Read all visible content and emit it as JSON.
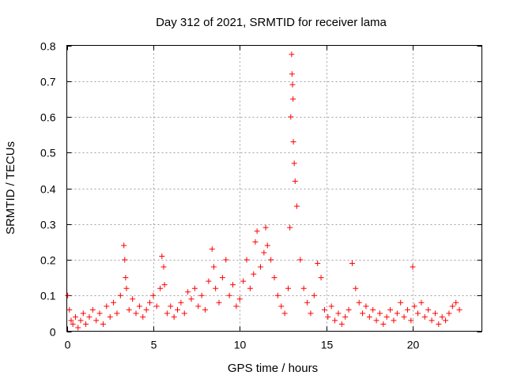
{
  "chart_data": {
    "type": "scatter",
    "title": "Day 312 of 2021, SRMTID for receiver lama",
    "xlabel": "GPS time / hours",
    "ylabel": "SRMTID / TECUs",
    "xlim": [
      0,
      24
    ],
    "ylim": [
      0,
      0.8
    ],
    "xticks": [
      0,
      5,
      10,
      15,
      20
    ],
    "xtick_labels": [
      "0",
      "5",
      "10",
      "15",
      "20"
    ],
    "yticks": [
      0,
      0.1,
      0.2,
      0.3,
      0.4,
      0.5,
      0.6,
      0.7,
      0.8
    ],
    "ytick_labels": [
      "0",
      "0.1",
      "0.2",
      "0.3",
      "0.4",
      "0.5",
      "0.6",
      "0.7",
      "0.8"
    ],
    "grid": true,
    "marker": "plus",
    "color": "#ff0000",
    "series": [
      {
        "name": "SRMTID",
        "x": [
          0.05,
          0.15,
          0.25,
          0.35,
          0.5,
          0.65,
          0.8,
          0.95,
          1.1,
          1.3,
          1.5,
          1.7,
          1.9,
          2.1,
          2.3,
          2.5,
          2.7,
          2.9,
          3.1,
          3.3,
          3.35,
          3.4,
          3.45,
          3.6,
          3.8,
          4.0,
          4.2,
          4.4,
          4.6,
          4.8,
          5.0,
          5.2,
          5.4,
          5.5,
          5.6,
          5.65,
          5.8,
          6.0,
          6.2,
          6.4,
          6.6,
          6.8,
          7.0,
          7.2,
          7.4,
          7.6,
          7.8,
          8.0,
          8.2,
          8.4,
          8.5,
          8.6,
          8.8,
          9.0,
          9.2,
          9.4,
          9.6,
          9.8,
          10.0,
          10.2,
          10.4,
          10.6,
          10.8,
          10.9,
          11.0,
          11.2,
          11.4,
          11.5,
          11.6,
          11.8,
          12.0,
          12.2,
          12.4,
          12.6,
          12.8,
          12.9,
          12.95,
          13.0,
          13.02,
          13.05,
          13.08,
          13.1,
          13.15,
          13.2,
          13.3,
          13.5,
          13.7,
          13.9,
          14.1,
          14.3,
          14.5,
          14.7,
          14.9,
          15.1,
          15.3,
          15.5,
          15.7,
          15.9,
          16.1,
          16.3,
          16.5,
          16.7,
          16.9,
          17.1,
          17.3,
          17.5,
          17.7,
          17.9,
          18.1,
          18.3,
          18.5,
          18.7,
          18.9,
          19.1,
          19.3,
          19.5,
          19.7,
          19.9,
          20.0,
          20.1,
          20.3,
          20.5,
          20.7,
          20.9,
          21.1,
          21.3,
          21.5,
          21.7,
          21.9,
          22.1,
          22.3,
          22.5,
          22.7
        ],
        "y": [
          0.1,
          0.06,
          0.03,
          0.02,
          0.04,
          0.01,
          0.03,
          0.05,
          0.02,
          0.04,
          0.06,
          0.03,
          0.05,
          0.02,
          0.07,
          0.04,
          0.08,
          0.05,
          0.1,
          0.24,
          0.2,
          0.15,
          0.12,
          0.06,
          0.09,
          0.05,
          0.07,
          0.04,
          0.06,
          0.08,
          0.1,
          0.07,
          0.12,
          0.21,
          0.18,
          0.13,
          0.05,
          0.07,
          0.04,
          0.06,
          0.08,
          0.05,
          0.11,
          0.09,
          0.12,
          0.07,
          0.1,
          0.06,
          0.14,
          0.23,
          0.18,
          0.12,
          0.08,
          0.15,
          0.2,
          0.1,
          0.13,
          0.07,
          0.09,
          0.14,
          0.2,
          0.12,
          0.16,
          0.25,
          0.28,
          0.18,
          0.22,
          0.29,
          0.24,
          0.2,
          0.15,
          0.1,
          0.07,
          0.05,
          0.12,
          0.29,
          0.6,
          0.775,
          0.72,
          0.69,
          0.65,
          0.53,
          0.47,
          0.42,
          0.35,
          0.2,
          0.12,
          0.08,
          0.05,
          0.1,
          0.19,
          0.15,
          0.06,
          0.04,
          0.07,
          0.03,
          0.05,
          0.02,
          0.04,
          0.06,
          0.19,
          0.12,
          0.08,
          0.05,
          0.07,
          0.04,
          0.06,
          0.03,
          0.05,
          0.02,
          0.04,
          0.06,
          0.03,
          0.05,
          0.08,
          0.04,
          0.06,
          0.03,
          0.18,
          0.07,
          0.05,
          0.08,
          0.04,
          0.06,
          0.03,
          0.05,
          0.02,
          0.04,
          0.03,
          0.05,
          0.07,
          0.08,
          0.06
        ]
      }
    ]
  }
}
